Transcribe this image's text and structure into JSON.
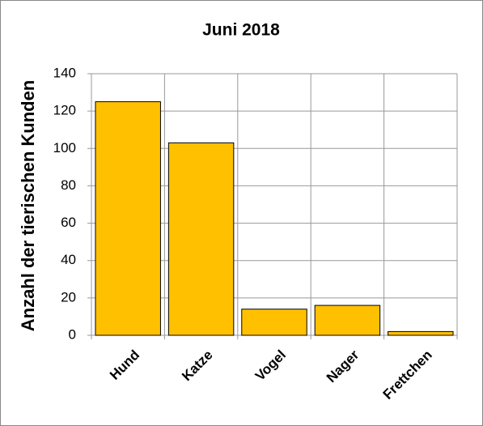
{
  "chart_data": {
    "type": "bar",
    "title": "Juni 2018",
    "y_label": "Anzahl der tierischen Kunden",
    "categories": [
      "Hund",
      "Katze",
      "Vogel",
      "Nager",
      "Frettchen"
    ],
    "values": [
      125,
      103,
      14,
      16,
      2
    ],
    "color": "#ffc000",
    "ylim": [
      0,
      140
    ],
    "yticks": [
      0,
      20,
      40,
      60,
      80,
      100,
      120,
      140
    ],
    "grid": true
  }
}
